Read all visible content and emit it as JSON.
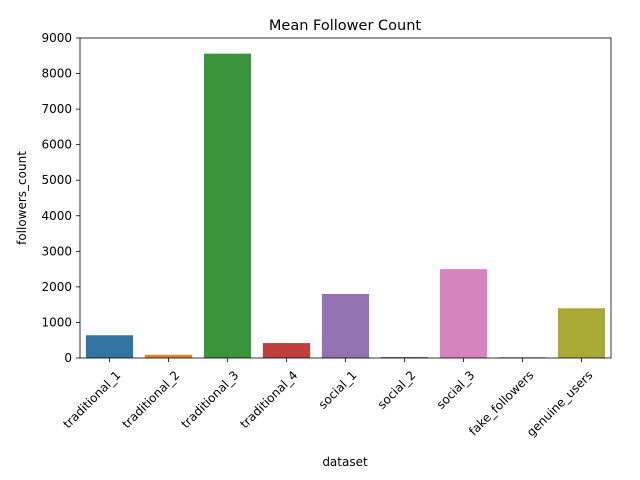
{
  "chart_data": {
    "type": "bar",
    "title": "Mean Follower Count",
    "xlabel": "dataset",
    "ylabel": "followers_count",
    "categories": [
      "traditional_1",
      "traditional_2",
      "traditional_3",
      "traditional_4",
      "social_1",
      "social_2",
      "social_3",
      "fake_followers",
      "genuine_users"
    ],
    "values": [
      640,
      90,
      8560,
      420,
      1800,
      25,
      2500,
      20,
      1400
    ],
    "colors": [
      "#3274a1",
      "#e1812c",
      "#3a923a",
      "#c03d3e",
      "#9372b2",
      "#845b53",
      "#d684bd",
      "#7f7f7f",
      "#a9aa35"
    ],
    "ylim": [
      0,
      9000
    ],
    "yticks": [
      "0",
      "1000",
      "2000",
      "3000",
      "4000",
      "5000",
      "6000",
      "7000",
      "8000",
      "9000"
    ],
    "grid": false,
    "legend": "none"
  }
}
